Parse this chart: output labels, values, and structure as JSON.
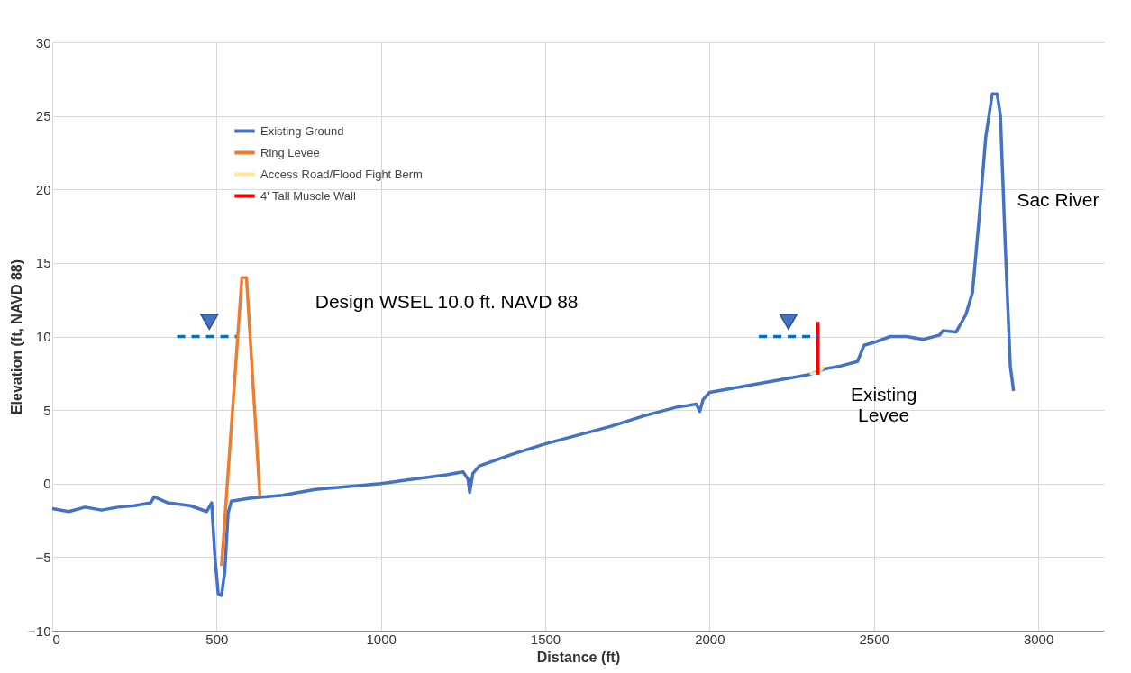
{
  "chart_data": {
    "type": "line",
    "xlabel": "Distance (ft)",
    "ylabel": "Elevation (ft, NAVD 88)",
    "xlim": [
      0,
      3200
    ],
    "xticks": [
      0,
      500,
      1000,
      1500,
      2000,
      2500,
      3000
    ],
    "ylim": [
      -10,
      30
    ],
    "yticks": [
      -10,
      -5,
      0,
      5,
      10,
      15,
      20,
      25,
      30
    ],
    "grid": true,
    "legend": "top left",
    "marker": "none",
    "series": [
      {
        "name": "Existing Ground",
        "color": "#4472c4",
        "x": [
          0,
          50,
          100,
          150,
          200,
          250,
          300,
          310,
          350,
          420,
          470,
          485,
          495,
          505,
          515,
          525,
          535,
          545,
          600,
          700,
          800,
          900,
          1000,
          1100,
          1200,
          1250,
          1265,
          1270,
          1280,
          1300,
          1400,
          1500,
          1600,
          1700,
          1800,
          1900,
          1960,
          1970,
          1980,
          2000,
          2100,
          2200,
          2300,
          2330,
          2350,
          2400,
          2450,
          2470,
          2500,
          2550,
          2600,
          2650,
          2700,
          2710,
          2750,
          2780,
          2800,
          2820,
          2840,
          2860,
          2875,
          2885,
          2900,
          2915,
          2925
        ],
        "values": [
          -1.7,
          -1.9,
          -1.6,
          -1.8,
          -1.6,
          -1.5,
          -1.3,
          -0.9,
          -1.3,
          -1.5,
          -1.9,
          -1.3,
          -5,
          -7.5,
          -7.6,
          -6.0,
          -2,
          -1.2,
          -1.0,
          -0.8,
          -0.4,
          -0.2,
          0.0,
          0.3,
          0.6,
          0.8,
          0.3,
          -0.6,
          0.7,
          1.2,
          2.0,
          2.7,
          3.3,
          3.9,
          4.6,
          5.2,
          5.4,
          4.9,
          5.7,
          6.2,
          6.6,
          7.0,
          7.4,
          7.6,
          7.8,
          8.0,
          8.3,
          9.4,
          9.6,
          10.0,
          10.0,
          9.8,
          10.1,
          10.4,
          10.3,
          11.5,
          13,
          18,
          23.5,
          26.5,
          26.5,
          25,
          16,
          8,
          6.3
        ]
      },
      {
        "name": "Ring Levee",
        "color": "#ed7d31",
        "x": [
          515,
          577,
          591,
          632
        ],
        "values": [
          -5.6,
          14,
          14,
          -0.9
        ]
      },
      {
        "name": "Access Road/Flood Fight Berm",
        "color": "#ffe699",
        "x": [
          2305,
          2330,
          2350
        ],
        "values": [
          7.5,
          7.5,
          8.0
        ]
      },
      {
        "name": "4' Tall Muscle Wall",
        "color": "#ff0000",
        "x": [
          2330,
          2330
        ],
        "values": [
          7.4,
          11.0
        ]
      },
      {
        "color": "#0070c0",
        "line_style": "dashed",
        "x": [
          380,
          560
        ],
        "values": [
          10,
          10
        ]
      },
      {
        "color": "#0070c0",
        "line_style": "dashed",
        "x": [
          2150,
          2330
        ],
        "values": [
          10,
          10
        ]
      },
      {
        "color": "#4472c4",
        "type": "scatter",
        "marker": "triangle",
        "x": [
          478,
          2240
        ],
        "values": [
          11.0,
          11.0
        ]
      }
    ],
    "annotations": [
      "Design WSEL 10.0 ft. NAVD 88",
      "Sac River",
      "Existing\nLevee"
    ]
  }
}
